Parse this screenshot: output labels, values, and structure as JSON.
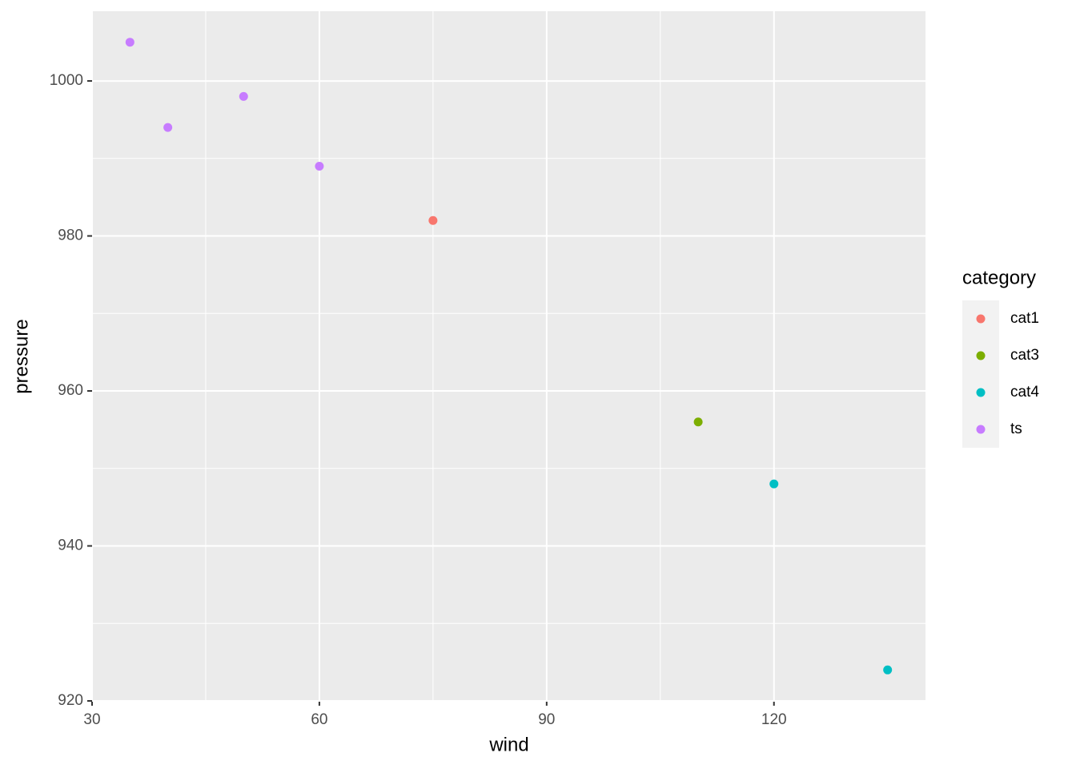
{
  "chart_data": {
    "type": "scatter",
    "x_label": "wind",
    "y_label": "pressure",
    "legend_title": "category",
    "legend_position": "right",
    "grid": true,
    "panel_background": "#ebebeb",
    "xlim": [
      30,
      140
    ],
    "ylim": [
      920,
      1009
    ],
    "xticks": [
      30,
      60,
      90,
      120
    ],
    "yticks": [
      920,
      940,
      960,
      980,
      1000
    ],
    "minor_xticks": [
      45,
      75,
      105
    ],
    "minor_yticks": [
      930,
      950,
      970,
      990
    ],
    "series": [
      {
        "name": "cat1",
        "color": "#f8766d",
        "x": [
          75
        ],
        "values": [
          982
        ]
      },
      {
        "name": "cat3",
        "color": "#7cae00",
        "x": [
          110
        ],
        "values": [
          956
        ]
      },
      {
        "name": "cat4",
        "color": "#00bfc4",
        "x": [
          120,
          135
        ],
        "values": [
          948,
          924
        ]
      },
      {
        "name": "ts",
        "color": "#c77cff",
        "x": [
          35,
          40,
          50,
          60
        ],
        "values": [
          1005,
          994,
          998,
          989
        ]
      }
    ]
  }
}
